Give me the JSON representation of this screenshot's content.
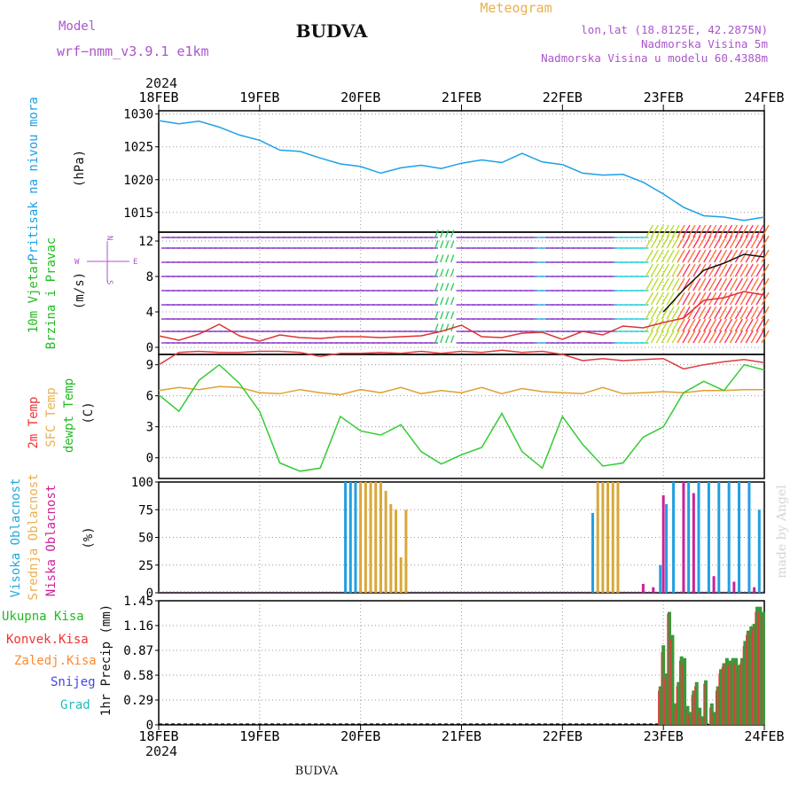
{
  "header": {
    "model_label": "Model",
    "model_name": "wrf−nmm_v3.9.1  e1km",
    "station": "BUDVA",
    "meteogram": "Meteogram",
    "lonlat": "lon,lat (18.8125E, 42.2875N)",
    "elev": "Nadmorska Visina 5m",
    "elev_model": "Nadmorska Visina u modelu 60.4388m",
    "year": "2024",
    "footer_station": "BUDVA",
    "credit": "made by Angel",
    "compass": {
      "n": "N",
      "w": "W",
      "e": "E",
      "s": "S"
    }
  },
  "colors": {
    "pressure": "#1ea0e6",
    "wind_speed": "#dd3333",
    "wind_gust": "#111111",
    "t2m": "#e03c3c",
    "sfc": "#e0a030",
    "dewpt": "#33cc33",
    "cloud_high": "#22a0e0",
    "cloud_mid": "#d8a83a",
    "cloud_low": "#cc2299",
    "precip_total": "#3a9a3a",
    "precip_conv": "#e03c3c",
    "label_green": "#22bb22",
    "label_red": "#ee3333",
    "label_orange": "#ff8833",
    "label_blue": "#4444ee",
    "label_teal": "#22bbbb",
    "label_purple": "#aa55cc",
    "label_gold": "#e8b050"
  },
  "x_axis": {
    "ticks": [
      "18FEB",
      "19FEB",
      "20FEB",
      "21FEB",
      "22FEB",
      "23FEB",
      "24FEB"
    ]
  },
  "chart_data": [
    {
      "type": "line",
      "panel": "pressure",
      "ylabel_main": "Pritisak na nivou mora",
      "unit": "(hPa)",
      "yticks": [
        "1030",
        "1025",
        "1020",
        "1015"
      ],
      "ylim": [
        1012,
        1030.5
      ],
      "x_days": [
        0,
        0.2,
        0.4,
        0.6,
        0.8,
        1.0,
        1.2,
        1.4,
        1.6,
        1.8,
        2.0,
        2.2,
        2.4,
        2.6,
        2.8,
        3.0,
        3.2,
        3.4,
        3.6,
        3.8,
        4.0,
        4.2,
        4.4,
        4.6,
        4.8,
        5.0,
        5.2,
        5.4,
        5.6,
        5.8,
        6.0
      ],
      "series": [
        {
          "values": [
            1029,
            1028.5,
            1028.9,
            1028,
            1026.8,
            1026,
            1024.5,
            1024.3,
            1023.3,
            1022.4,
            1022,
            1021,
            1021.8,
            1022.2,
            1021.7,
            1022.5,
            1023,
            1022.6,
            1024,
            1022.7,
            1022.3,
            1021,
            1020.7,
            1020.8,
            1019.6,
            1017.8,
            1015.8,
            1014.5,
            1014.3,
            1013.8,
            1014.3
          ],
          "color": "#1ea0e6"
        }
      ]
    },
    {
      "type": "line",
      "panel": "wind",
      "ylabel_main": "10m Vjetar",
      "ylabel_sub": "Brzina i Pravac",
      "unit": "(m/s)",
      "yticks": [
        "12",
        "8",
        "4",
        "0"
      ],
      "ylim": [
        -0.8,
        13
      ],
      "x_days": [
        0,
        0.2,
        0.4,
        0.6,
        0.8,
        1.0,
        1.2,
        1.4,
        1.6,
        1.8,
        2.0,
        2.2,
        2.4,
        2.6,
        2.8,
        3.0,
        3.2,
        3.4,
        3.6,
        3.8,
        4.0,
        4.2,
        4.4,
        4.6,
        4.8,
        5.0,
        5.2,
        5.4,
        5.6,
        5.8,
        6.0
      ],
      "series": [
        {
          "values": [
            1.3,
            0.8,
            1.5,
            2.6,
            1.3,
            0.7,
            1.4,
            1.1,
            1.0,
            1.2,
            1.2,
            1.1,
            1.2,
            1.3,
            1.8,
            2.5,
            1.2,
            1.1,
            1.6,
            1.7,
            0.9,
            1.8,
            1.4,
            2.4,
            2.2,
            2.8,
            3.3,
            5.3,
            5.6,
            6.3,
            5.9
          ],
          "color": "#dd3333"
        },
        {
          "values": [
            null,
            null,
            null,
            null,
            null,
            null,
            null,
            null,
            null,
            null,
            null,
            null,
            null,
            null,
            null,
            null,
            null,
            null,
            null,
            null,
            null,
            null,
            null,
            null,
            null,
            4.0,
            6.5,
            8.7,
            9.5,
            10.5,
            10.2
          ],
          "color": "#111111"
        }
      ]
    },
    {
      "type": "line",
      "panel": "temperature",
      "ylabel_1": "2m Temp",
      "ylabel_2": "SFC Temp",
      "ylabel_3": "dewpt Temp",
      "unit": "(C)",
      "yticks": [
        "9",
        "6",
        "3",
        "0"
      ],
      "ylim": [
        -2,
        10
      ],
      "x_days": [
        0,
        0.2,
        0.4,
        0.6,
        0.8,
        1.0,
        1.2,
        1.4,
        1.6,
        1.8,
        2.0,
        2.2,
        2.4,
        2.6,
        2.8,
        3.0,
        3.2,
        3.4,
        3.6,
        3.8,
        4.0,
        4.2,
        4.4,
        4.6,
        4.8,
        5.0,
        5.2,
        5.4,
        5.6,
        5.8,
        6.0
      ],
      "series": [
        {
          "values": [
            9.0,
            10.2,
            10.3,
            10.2,
            10.2,
            10.3,
            10.3,
            10.2,
            9.8,
            10.1,
            10.1,
            10.2,
            10.1,
            10.3,
            10.1,
            10.3,
            10.2,
            10.4,
            10.2,
            10.3,
            10.0,
            9.4,
            9.6,
            9.4,
            9.5,
            9.6,
            8.6,
            9.0,
            9.3,
            9.5,
            9.2
          ],
          "color": "#e03c3c"
        },
        {
          "values": [
            6.5,
            6.8,
            6.6,
            6.9,
            6.8,
            6.3,
            6.2,
            6.6,
            6.3,
            6.1,
            6.6,
            6.3,
            6.8,
            6.2,
            6.5,
            6.3,
            6.8,
            6.2,
            6.7,
            6.4,
            6.3,
            6.2,
            6.8,
            6.2,
            6.3,
            6.4,
            6.3,
            6.5,
            6.5,
            6.6,
            6.6
          ],
          "color": "#e0a030"
        },
        {
          "values": [
            6.1,
            4.5,
            7.5,
            9.0,
            7.2,
            4.5,
            -0.5,
            -1.3,
            -1.0,
            4.0,
            2.6,
            2.2,
            3.2,
            0.6,
            -0.6,
            0.3,
            1.0,
            4.3,
            0.6,
            -1.0,
            4.0,
            1.3,
            -0.8,
            -0.5,
            2.0,
            3.0,
            6.3,
            7.4,
            6.5,
            9.0,
            8.5
          ],
          "color": "#33cc33"
        }
      ]
    },
    {
      "type": "bar",
      "panel": "cloud",
      "ylabel_1": "Visoka Oblacnost",
      "ylabel_2": "Srednja Oblacnost",
      "ylabel_3": "Niska Oblacnost",
      "unit": "(%)",
      "yticks": [
        "100",
        "75",
        "50",
        "25",
        "0"
      ],
      "ylim": [
        0,
        100
      ],
      "series": [
        {
          "name": "Visoka Oblacnost",
          "color": "#22a0e0",
          "x_days": [
            1.85,
            1.9,
            1.95,
            4.3,
            4.97,
            5.03,
            5.1,
            5.25,
            5.35,
            5.45,
            5.55,
            5.65,
            5.75,
            5.85,
            5.95
          ],
          "values": [
            100,
            100,
            100,
            72,
            25,
            80,
            100,
            100,
            100,
            100,
            100,
            100,
            100,
            100,
            75
          ]
        },
        {
          "name": "Srednja Oblacnost",
          "color": "#d8a83a",
          "x_days": [
            2.0,
            2.05,
            2.1,
            2.15,
            2.2,
            2.25,
            2.3,
            2.35,
            2.4,
            2.45,
            4.35,
            4.4,
            4.45,
            4.5,
            4.55
          ],
          "values": [
            100,
            100,
            100,
            100,
            100,
            92,
            80,
            75,
            32,
            75,
            100,
            100,
            100,
            100,
            100
          ]
        },
        {
          "name": "Niska Oblacnost",
          "color": "#cc2299",
          "x_days": [
            4.8,
            4.9,
            5.0,
            5.2,
            5.3,
            5.5,
            5.7,
            5.9
          ],
          "values": [
            8,
            5,
            88,
            100,
            90,
            15,
            10,
            5
          ]
        }
      ]
    },
    {
      "type": "bar",
      "panel": "precip",
      "ylabel_1": "Ukupna Kisa",
      "ylabel_2": "Konvek.Kisa",
      "ylabel_3": "Zaledj.Kisa",
      "ylabel_4": "Snijeg",
      "ylabel_5": "Grad",
      "unit": "1hr Precip (mm)",
      "yticks": [
        "1.45",
        "1.16",
        "0.87",
        "0.58",
        "0.29",
        "0"
      ],
      "ylim": [
        0,
        1.45
      ],
      "x_days": [
        4.97,
        5.0,
        5.03,
        5.06,
        5.09,
        5.12,
        5.15,
        5.18,
        5.21,
        5.24,
        5.27,
        5.3,
        5.33,
        5.36,
        5.39,
        5.42,
        5.45,
        5.48,
        5.51,
        5.54,
        5.57,
        5.6,
        5.63,
        5.66,
        5.69,
        5.72,
        5.75,
        5.78,
        5.81,
        5.84,
        5.87,
        5.9,
        5.93,
        5.96,
        5.99
      ],
      "series": [
        {
          "name": "Ukupna Kisa",
          "color": "#3a9a3a",
          "values": [
            0.45,
            0.93,
            0.6,
            1.32,
            1.05,
            0.25,
            0.5,
            0.8,
            0.78,
            0.22,
            0.15,
            0.4,
            0.5,
            0.2,
            0.1,
            0.52,
            0.0,
            0.25,
            0.15,
            0.45,
            0.65,
            0.72,
            0.78,
            0.75,
            0.78,
            0.78,
            0.7,
            0.78,
            0.98,
            1.1,
            1.15,
            1.18,
            1.38,
            1.38,
            1.32
          ]
        },
        {
          "name": "Konvek.Kisa",
          "color": "#e03c3c",
          "values": [
            0.4,
            0.85,
            0.55,
            1.3,
            1.0,
            0.2,
            0.45,
            0.75,
            0.7,
            0.18,
            0.12,
            0.35,
            0.45,
            0.15,
            0.08,
            0.48,
            0.0,
            0.2,
            0.12,
            0.4,
            0.6,
            0.68,
            0.72,
            0.7,
            0.72,
            0.72,
            0.65,
            0.72,
            0.92,
            1.05,
            1.1,
            1.12,
            1.32,
            1.32,
            1.28
          ]
        }
      ]
    }
  ]
}
